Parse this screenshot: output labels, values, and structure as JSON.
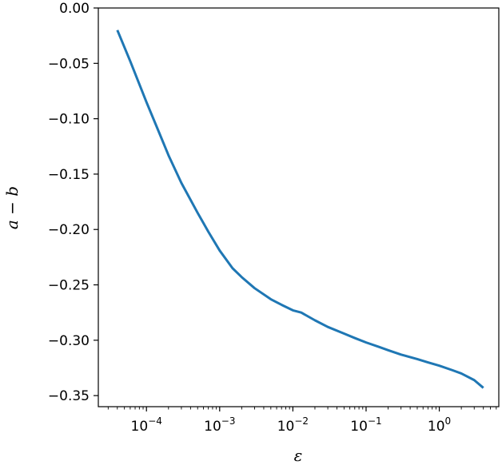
{
  "chart_data": {
    "type": "line",
    "title": "",
    "xlabel": "ε",
    "ylabel": "a − b",
    "xscale": "log",
    "xlim": [
      2.2e-05,
      6.5
    ],
    "ylim": [
      -0.36,
      0.0
    ],
    "grid": false,
    "legend": "none",
    "x_ticks": [
      {
        "value": 0.0001,
        "mant": "10",
        "exp": "−4"
      },
      {
        "value": 0.001,
        "mant": "10",
        "exp": "−3"
      },
      {
        "value": 0.01,
        "mant": "10",
        "exp": "−2"
      },
      {
        "value": 0.1,
        "mant": "10",
        "exp": "−1"
      },
      {
        "value": 1,
        "mant": "10",
        "exp": "0"
      }
    ],
    "y_ticks": [
      {
        "value": 0.0,
        "label": "0.00"
      },
      {
        "value": -0.05,
        "label": "−0.05"
      },
      {
        "value": -0.1,
        "label": "−0.10"
      },
      {
        "value": -0.15,
        "label": "−0.15"
      },
      {
        "value": -0.2,
        "label": "−0.20"
      },
      {
        "value": -0.25,
        "label": "−0.25"
      },
      {
        "value": -0.3,
        "label": "−0.30"
      },
      {
        "value": -0.35,
        "label": "−0.35"
      }
    ],
    "series": [
      {
        "color": "#1f77b4",
        "x": [
          4e-05,
          6e-05,
          0.0001,
          0.00015,
          0.0002,
          0.0003,
          0.0005,
          0.0007,
          0.001,
          0.0015,
          0.002,
          0.003,
          0.005,
          0.007,
          0.01,
          0.013,
          0.02,
          0.03,
          0.05,
          0.07,
          0.1,
          0.15,
          0.2,
          0.3,
          0.5,
          0.7,
          1.0,
          1.5,
          2.0,
          3.0,
          4.0
        ],
        "y": [
          -0.02,
          -0.048,
          -0.085,
          -0.113,
          -0.133,
          -0.158,
          -0.185,
          -0.202,
          -0.219,
          -0.235,
          -0.243,
          -0.253,
          -0.263,
          -0.268,
          -0.273,
          -0.275,
          -0.282,
          -0.288,
          -0.294,
          -0.298,
          -0.302,
          -0.306,
          -0.309,
          -0.313,
          -0.317,
          -0.32,
          -0.323,
          -0.327,
          -0.33,
          -0.336,
          -0.343
        ]
      }
    ]
  }
}
